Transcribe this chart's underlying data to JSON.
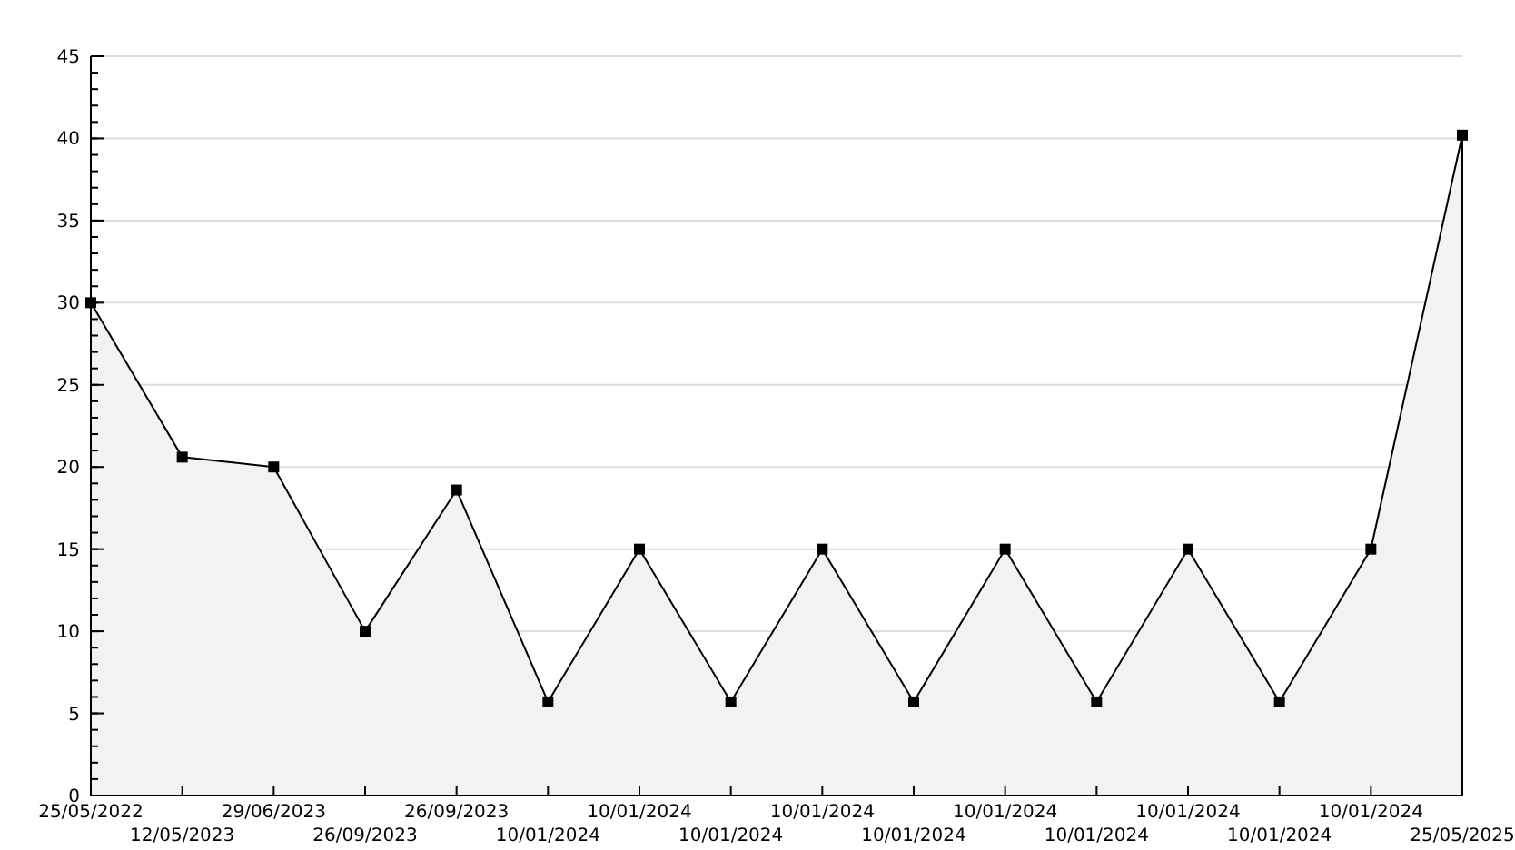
{
  "chart_data": {
    "type": "area",
    "categories": [
      "25/05/2022",
      "12/05/2023",
      "29/06/2023",
      "26/09/2023",
      "26/09/2023",
      "10/01/2024",
      "10/01/2024",
      "10/01/2024",
      "10/01/2024",
      "10/01/2024",
      "10/01/2024",
      "10/01/2024",
      "10/01/2024",
      "10/01/2024",
      "10/01/2024",
      "25/05/2025"
    ],
    "series": [
      {
        "color": "#000000",
        "values": [
          30,
          20.6,
          20,
          10,
          18.6,
          5.7,
          15,
          5.7,
          15,
          5.7,
          15,
          5.7,
          15,
          5.7,
          15,
          40.2
        ]
      }
    ],
    "ylim": [
      0,
      45
    ],
    "yticks": [
      0,
      5,
      10,
      15,
      20,
      25,
      30,
      35,
      40,
      45
    ],
    "grid": "y",
    "marker": "square",
    "line_style": "solid"
  }
}
